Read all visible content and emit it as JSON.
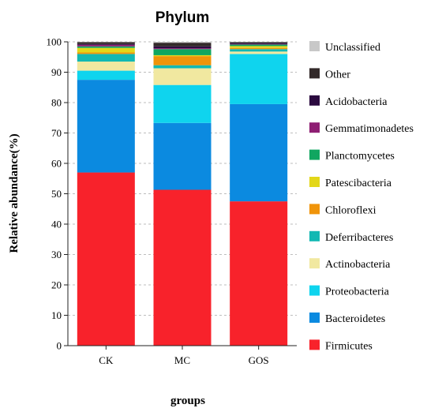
{
  "chart_data": {
    "type": "bar",
    "stacked": true,
    "title": "Phylum",
    "xlabel": "groups",
    "ylabel": "Relative abundance(%)",
    "ylim": [
      0,
      100
    ],
    "yticks": [
      0,
      10,
      20,
      30,
      40,
      50,
      60,
      70,
      80,
      90,
      100
    ],
    "grid": "horizontal dashed",
    "legend_position": "right",
    "categories": [
      "CK",
      "MC",
      "GOS"
    ],
    "series": [
      {
        "name": "Firmicutes",
        "color": "#f8222b",
        "values": [
          57.0,
          51.3,
          47.5
        ]
      },
      {
        "name": "Bacteroidetes",
        "color": "#0b8ae0",
        "values": [
          30.5,
          22.0,
          32.0
        ]
      },
      {
        "name": "Proteobacteria",
        "color": "#0fd4ee",
        "values": [
          3.0,
          12.5,
          16.5
        ]
      },
      {
        "name": "Actinobacteria",
        "color": "#f1e8a0",
        "values": [
          3.0,
          5.5,
          0.8
        ]
      },
      {
        "name": "Deferribacteres",
        "color": "#12b8b3",
        "values": [
          2.5,
          1.0,
          0.8
        ]
      },
      {
        "name": "Chloroflexi",
        "color": "#f0940a",
        "values": [
          0.5,
          3.0,
          0.4
        ]
      },
      {
        "name": "Patescibacteria",
        "color": "#e3d719",
        "values": [
          1.5,
          0.3,
          0.6
        ]
      },
      {
        "name": "Planctomycetes",
        "color": "#10a660",
        "values": [
          0.5,
          2.0,
          0.5
        ]
      },
      {
        "name": "Gemmatimonadetes",
        "color": "#8e1e73",
        "values": [
          0.5,
          0.3,
          0.2
        ]
      },
      {
        "name": "Acidobacteria",
        "color": "#2b0a3f",
        "values": [
          0.3,
          0.6,
          0.3
        ]
      },
      {
        "name": "Other",
        "color": "#332a2a",
        "values": [
          0.6,
          1.2,
          0.3
        ]
      },
      {
        "name": "Unclassified",
        "color": "#c8c8c8",
        "values": [
          0.1,
          0.3,
          0.1
        ]
      }
    ]
  }
}
